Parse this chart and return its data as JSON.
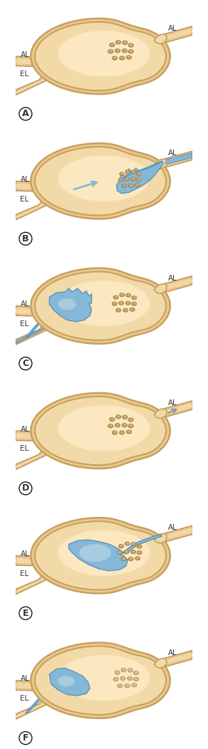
{
  "figsize": [
    2.92,
    10.52
  ],
  "dpi": 100,
  "n_panels": 6,
  "panel_labels": [
    "A",
    "B",
    "C",
    "D",
    "E",
    "F"
  ],
  "node_fill": "#F2D9A8",
  "node_edge": "#C8A060",
  "node_inner": "#FBE8C0",
  "node_outer_fill": "#EAC98A",
  "vessel_fill": "#E8C490",
  "vessel_edge": "#C09050",
  "vessel_inner": "#F0D8A8",
  "blue": "#85B8D8",
  "blue_edge": "#4A88B8",
  "blue_light": "#A8CCDF",
  "cell_fill": "#C8A870",
  "cell_edge": "#9A7840",
  "cell_inner": "#DDB880",
  "cell_fill_light": "#D8B890",
  "cell_edge_light": "#B09060",
  "arrow_blue": "#70A8CC",
  "arrow_gray": "#8899AA",
  "label_color": "#333333",
  "bg": "#FFFFFF"
}
